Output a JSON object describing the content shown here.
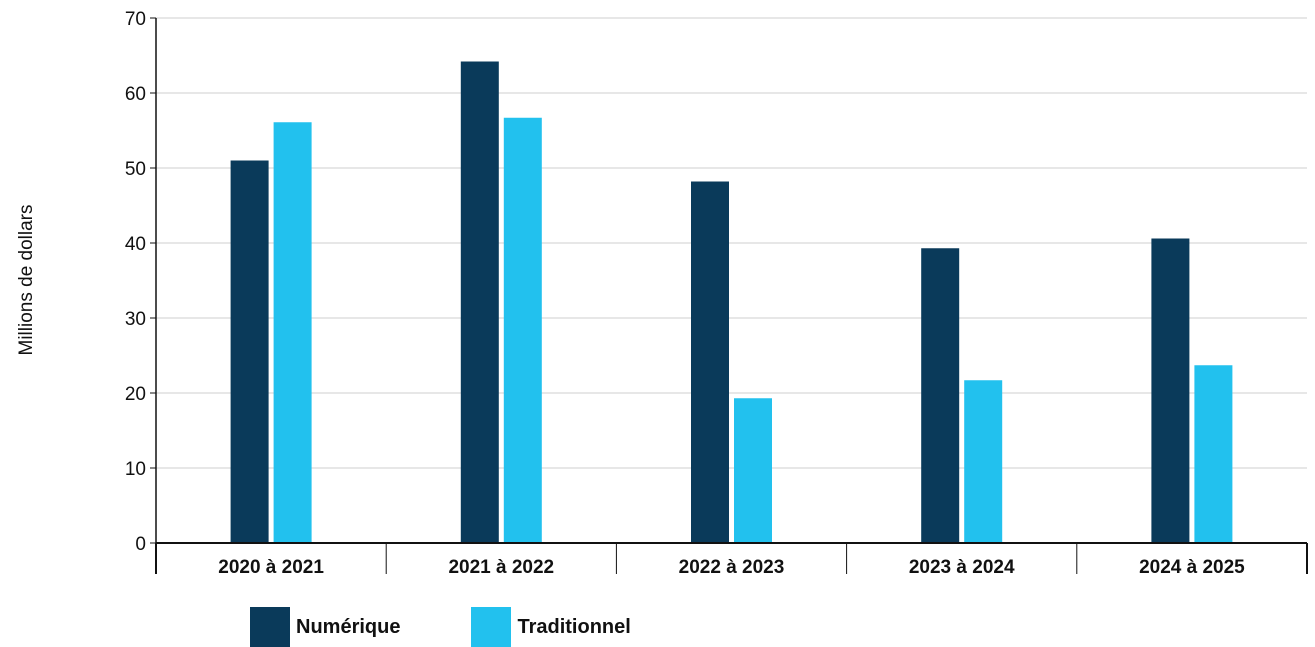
{
  "chart_data": {
    "type": "bar",
    "ylabel": "Millions de dollars",
    "xlabel": "",
    "ylim": [
      0,
      70
    ],
    "yticks": [
      0,
      10,
      20,
      30,
      40,
      50,
      60,
      70
    ],
    "grid": true,
    "legend_position": "bottom-left",
    "categories": [
      "2020 à 2021",
      "2021 à 2022",
      "2022 à 2023",
      "2023 à 2024",
      "2024 à 2025"
    ],
    "series": [
      {
        "name": "Numérique",
        "color": "#0a3a5a",
        "values": [
          51,
          64.2,
          48.2,
          39.3,
          40.6
        ]
      },
      {
        "name": "Traditionnel",
        "color": "#22c1ee",
        "values": [
          56.1,
          56.7,
          19.3,
          21.7,
          23.7
        ]
      }
    ]
  }
}
